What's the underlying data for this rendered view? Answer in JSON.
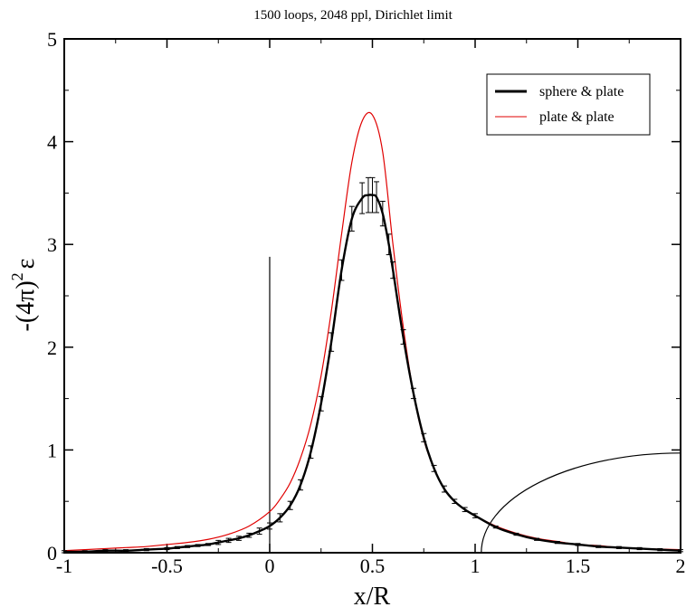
{
  "chart_data": {
    "type": "line",
    "title": "1500 loops, 2048 ppl, Dirichlet limit",
    "xlabel": "x/R",
    "ylabel_base": "-(4π)",
    "ylabel_sup": "2",
    "ylabel_symbol": "ε",
    "xlim": [
      -1,
      2
    ],
    "ylim": [
      0,
      5
    ],
    "xticks": [
      -1,
      -0.5,
      0,
      0.5,
      1,
      1.5,
      2
    ],
    "xtick_labels": [
      "-1",
      "-0.5",
      "0",
      "0.5",
      "1",
      "1.5",
      "2"
    ],
    "yticks": [
      0,
      1,
      2,
      3,
      4,
      5
    ],
    "ytick_labels": [
      "0",
      "1",
      "2",
      "3",
      "4",
      "5"
    ],
    "grid": false,
    "legend_position": "top-right",
    "series": [
      {
        "name": "sphere & plate",
        "color": "#000000",
        "error_bars": true,
        "x": [
          -1.0,
          -0.9,
          -0.8,
          -0.7,
          -0.6,
          -0.5,
          -0.45,
          -0.4,
          -0.35,
          -0.3,
          -0.25,
          -0.2,
          -0.15,
          -0.1,
          -0.05,
          0.0,
          0.05,
          0.1,
          0.15,
          0.2,
          0.25,
          0.3,
          0.35,
          0.4,
          0.45,
          0.48,
          0.5,
          0.52,
          0.55,
          0.58,
          0.6,
          0.65,
          0.7,
          0.75,
          0.8,
          0.85,
          0.9,
          0.95,
          1.0,
          1.1,
          1.2,
          1.3,
          1.4,
          1.5,
          1.6,
          1.7,
          1.8,
          1.9,
          2.0
        ],
        "y": [
          0.01,
          0.01,
          0.02,
          0.02,
          0.03,
          0.04,
          0.05,
          0.06,
          0.07,
          0.08,
          0.1,
          0.12,
          0.14,
          0.17,
          0.21,
          0.26,
          0.34,
          0.46,
          0.66,
          0.98,
          1.45,
          2.05,
          2.75,
          3.25,
          3.45,
          3.48,
          3.48,
          3.46,
          3.3,
          3.0,
          2.75,
          2.1,
          1.55,
          1.12,
          0.82,
          0.62,
          0.5,
          0.42,
          0.36,
          0.25,
          0.18,
          0.13,
          0.1,
          0.08,
          0.06,
          0.05,
          0.04,
          0.03,
          0.02
        ],
        "errors": [
          0.01,
          0.01,
          0.01,
          0.01,
          0.01,
          0.01,
          0.01,
          0.01,
          0.01,
          0.01,
          0.02,
          0.02,
          0.02,
          0.02,
          0.03,
          0.03,
          0.04,
          0.04,
          0.05,
          0.06,
          0.07,
          0.09,
          0.1,
          0.12,
          0.15,
          0.17,
          0.17,
          0.15,
          0.12,
          0.1,
          0.08,
          0.07,
          0.05,
          0.04,
          0.03,
          0.03,
          0.02,
          0.02,
          0.02,
          0.01,
          0.01,
          0.01,
          0.01,
          0.01,
          0.01,
          0.01,
          0.01,
          0.01,
          0.01
        ]
      },
      {
        "name": "plate & plate",
        "color": "#e00000",
        "error_bars": false,
        "x": [
          -1.0,
          -0.9,
          -0.8,
          -0.7,
          -0.6,
          -0.5,
          -0.4,
          -0.3,
          -0.2,
          -0.1,
          0.0,
          0.05,
          0.1,
          0.15,
          0.2,
          0.25,
          0.3,
          0.35,
          0.4,
          0.45,
          0.5,
          0.55,
          0.6,
          0.65,
          0.7,
          0.75,
          0.8,
          0.85,
          0.9,
          0.95,
          1.0,
          1.1,
          1.2,
          1.3,
          1.4,
          1.5,
          1.6,
          1.7,
          1.8,
          1.9,
          2.0
        ],
        "y": [
          0.02,
          0.03,
          0.04,
          0.05,
          0.06,
          0.08,
          0.1,
          0.13,
          0.18,
          0.26,
          0.4,
          0.52,
          0.68,
          0.92,
          1.25,
          1.72,
          2.35,
          3.1,
          3.8,
          4.2,
          4.26,
          3.9,
          3.0,
          2.2,
          1.55,
          1.1,
          0.82,
          0.62,
          0.5,
          0.42,
          0.36,
          0.26,
          0.19,
          0.14,
          0.11,
          0.08,
          0.07,
          0.05,
          0.04,
          0.035,
          0.03
        ]
      }
    ],
    "annotations": [
      {
        "kind": "vertical-line",
        "x": 0,
        "y_from": 0,
        "y_to": 2.88,
        "color": "#000000"
      },
      {
        "kind": "circle-arc",
        "center_x": 2.0,
        "center_y": 0,
        "radius": 0.97,
        "color": "#000000"
      }
    ]
  }
}
